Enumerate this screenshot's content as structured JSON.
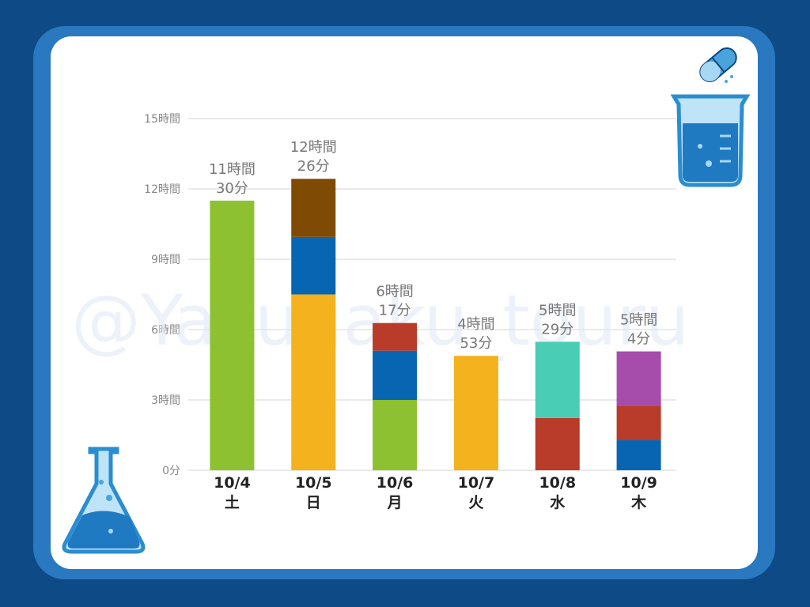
{
  "watermark": "@Yakugaku_touru",
  "colors": {
    "background": "#0d4a86",
    "frame": "#2a78c0",
    "card": "#ffffff",
    "green": "#8dc132",
    "orange": "#f3b21e",
    "blue": "#0765b2",
    "brown": "#7f4a04",
    "red": "#b93b2a",
    "teal": "#49cdb4",
    "purple": "#a64cab"
  },
  "icons": [
    "capsule-icon",
    "beaker-icon",
    "flask-icon"
  ],
  "chart_data": {
    "type": "bar",
    "stacked": true,
    "unit": "hours",
    "ylim": [
      0,
      15
    ],
    "y_ticks": [
      {
        "value": 0,
        "label": "0分"
      },
      {
        "value": 3,
        "label": "3時間"
      },
      {
        "value": 6,
        "label": "6時間"
      },
      {
        "value": 9,
        "label": "9時間"
      },
      {
        "value": 12,
        "label": "12時間"
      },
      {
        "value": 15,
        "label": "15時間"
      }
    ],
    "grid": true,
    "categories": [
      {
        "date": "10/4",
        "day": "土"
      },
      {
        "date": "10/5",
        "day": "日"
      },
      {
        "date": "10/6",
        "day": "月"
      },
      {
        "date": "10/7",
        "day": "火"
      },
      {
        "date": "10/8",
        "day": "水"
      },
      {
        "date": "10/9",
        "day": "木"
      }
    ],
    "totals": [
      {
        "line1": "11時間",
        "line2": "30分",
        "value": 11.5
      },
      {
        "line1": "12時間",
        "line2": "26分",
        "value": 12.43
      },
      {
        "line1": "6時間",
        "line2": "17分",
        "value": 6.28
      },
      {
        "line1": "4時間",
        "line2": "53分",
        "value": 4.88
      },
      {
        "line1": "5時間",
        "line2": "29分",
        "value": 5.48
      },
      {
        "line1": "5時間",
        "line2": "4分",
        "value": 5.07
      }
    ],
    "stacks": [
      [
        {
          "color": "#8dc132",
          "value": 11.5
        }
      ],
      [
        {
          "color": "#f3b21e",
          "value": 7.5
        },
        {
          "color": "#0765b2",
          "value": 2.45
        },
        {
          "color": "#7f4a04",
          "value": 2.48
        }
      ],
      [
        {
          "color": "#8dc132",
          "value": 3.0
        },
        {
          "color": "#0765b2",
          "value": 2.1
        },
        {
          "color": "#b93b2a",
          "value": 1.18
        }
      ],
      [
        {
          "color": "#f3b21e",
          "value": 4.88
        }
      ],
      [
        {
          "color": "#b93b2a",
          "value": 2.23
        },
        {
          "color": "#49cdb4",
          "value": 3.25
        }
      ],
      [
        {
          "color": "#0765b2",
          "value": 1.28
        },
        {
          "color": "#b93b2a",
          "value": 1.47
        },
        {
          "color": "#a64cab",
          "value": 2.32
        }
      ]
    ]
  }
}
